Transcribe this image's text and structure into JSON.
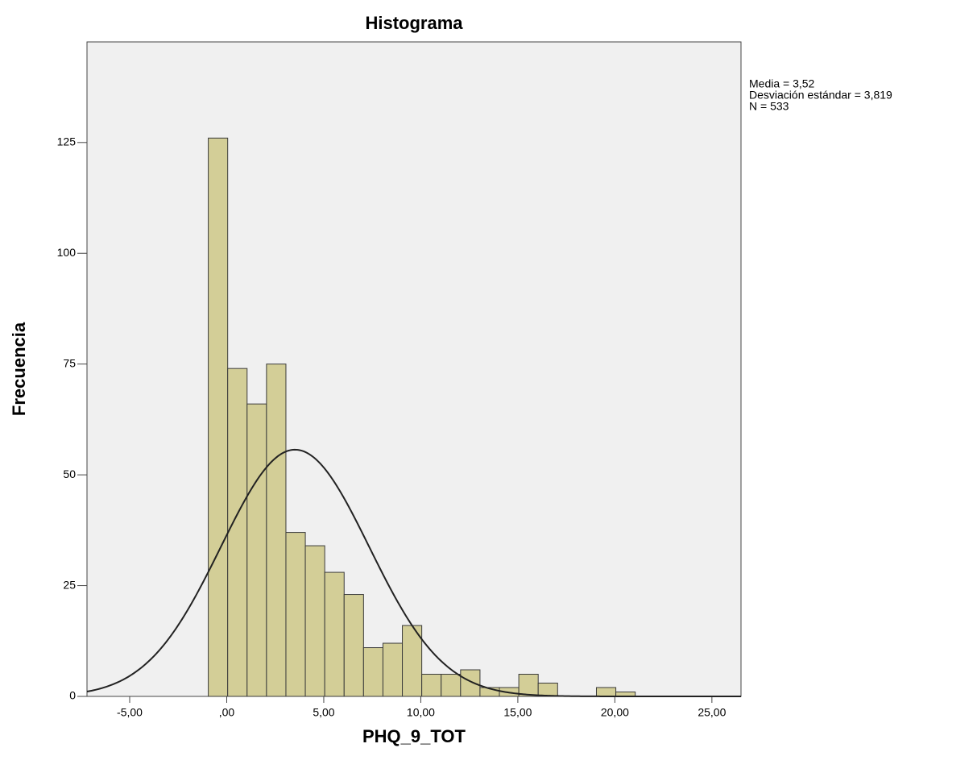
{
  "chart_data": {
    "type": "histogram",
    "title": "Histograma",
    "x_label": "PHQ_9_TOT",
    "y_label": "Frecuencia",
    "bins": [
      -0.95,
      0.05,
      1.05,
      2.05,
      3.05,
      4.05,
      5.05,
      6.05,
      7.05,
      8.05,
      9.05,
      10.05,
      11.05,
      12.05,
      13.05,
      14.05,
      15.05,
      16.05,
      17.05,
      18.05,
      19.05,
      20.05,
      21.05
    ],
    "values": [
      126,
      74,
      66,
      75,
      37,
      34,
      28,
      23,
      11,
      12,
      16,
      5,
      5,
      6,
      2,
      2,
      5,
      3,
      0,
      0,
      2,
      1
    ],
    "color": "#d3ce97",
    "edge_color": "#3a3a3a",
    "background": "#f0f0f0",
    "xlim": [
      -7.2,
      26.5
    ],
    "xticks": [
      {
        "value": -5,
        "label": "-5,00"
      },
      {
        "value": 0,
        "label": ",00"
      },
      {
        "value": 5,
        "label": "5,00"
      },
      {
        "value": 10,
        "label": "10,00"
      },
      {
        "value": 15,
        "label": "15,00"
      },
      {
        "value": 20,
        "label": "20,00"
      },
      {
        "value": 25,
        "label": "25,00"
      }
    ],
    "ylim": [
      0,
      147.7
    ],
    "yticks": [
      0,
      25,
      50,
      75,
      100,
      125
    ],
    "normal_curve": {
      "mean": 3.52,
      "sd": 3.819,
      "n": 533
    },
    "annotations": [
      "Media = 3,52",
      "Desviación estándar = 3,819",
      "N = 533"
    ]
  }
}
